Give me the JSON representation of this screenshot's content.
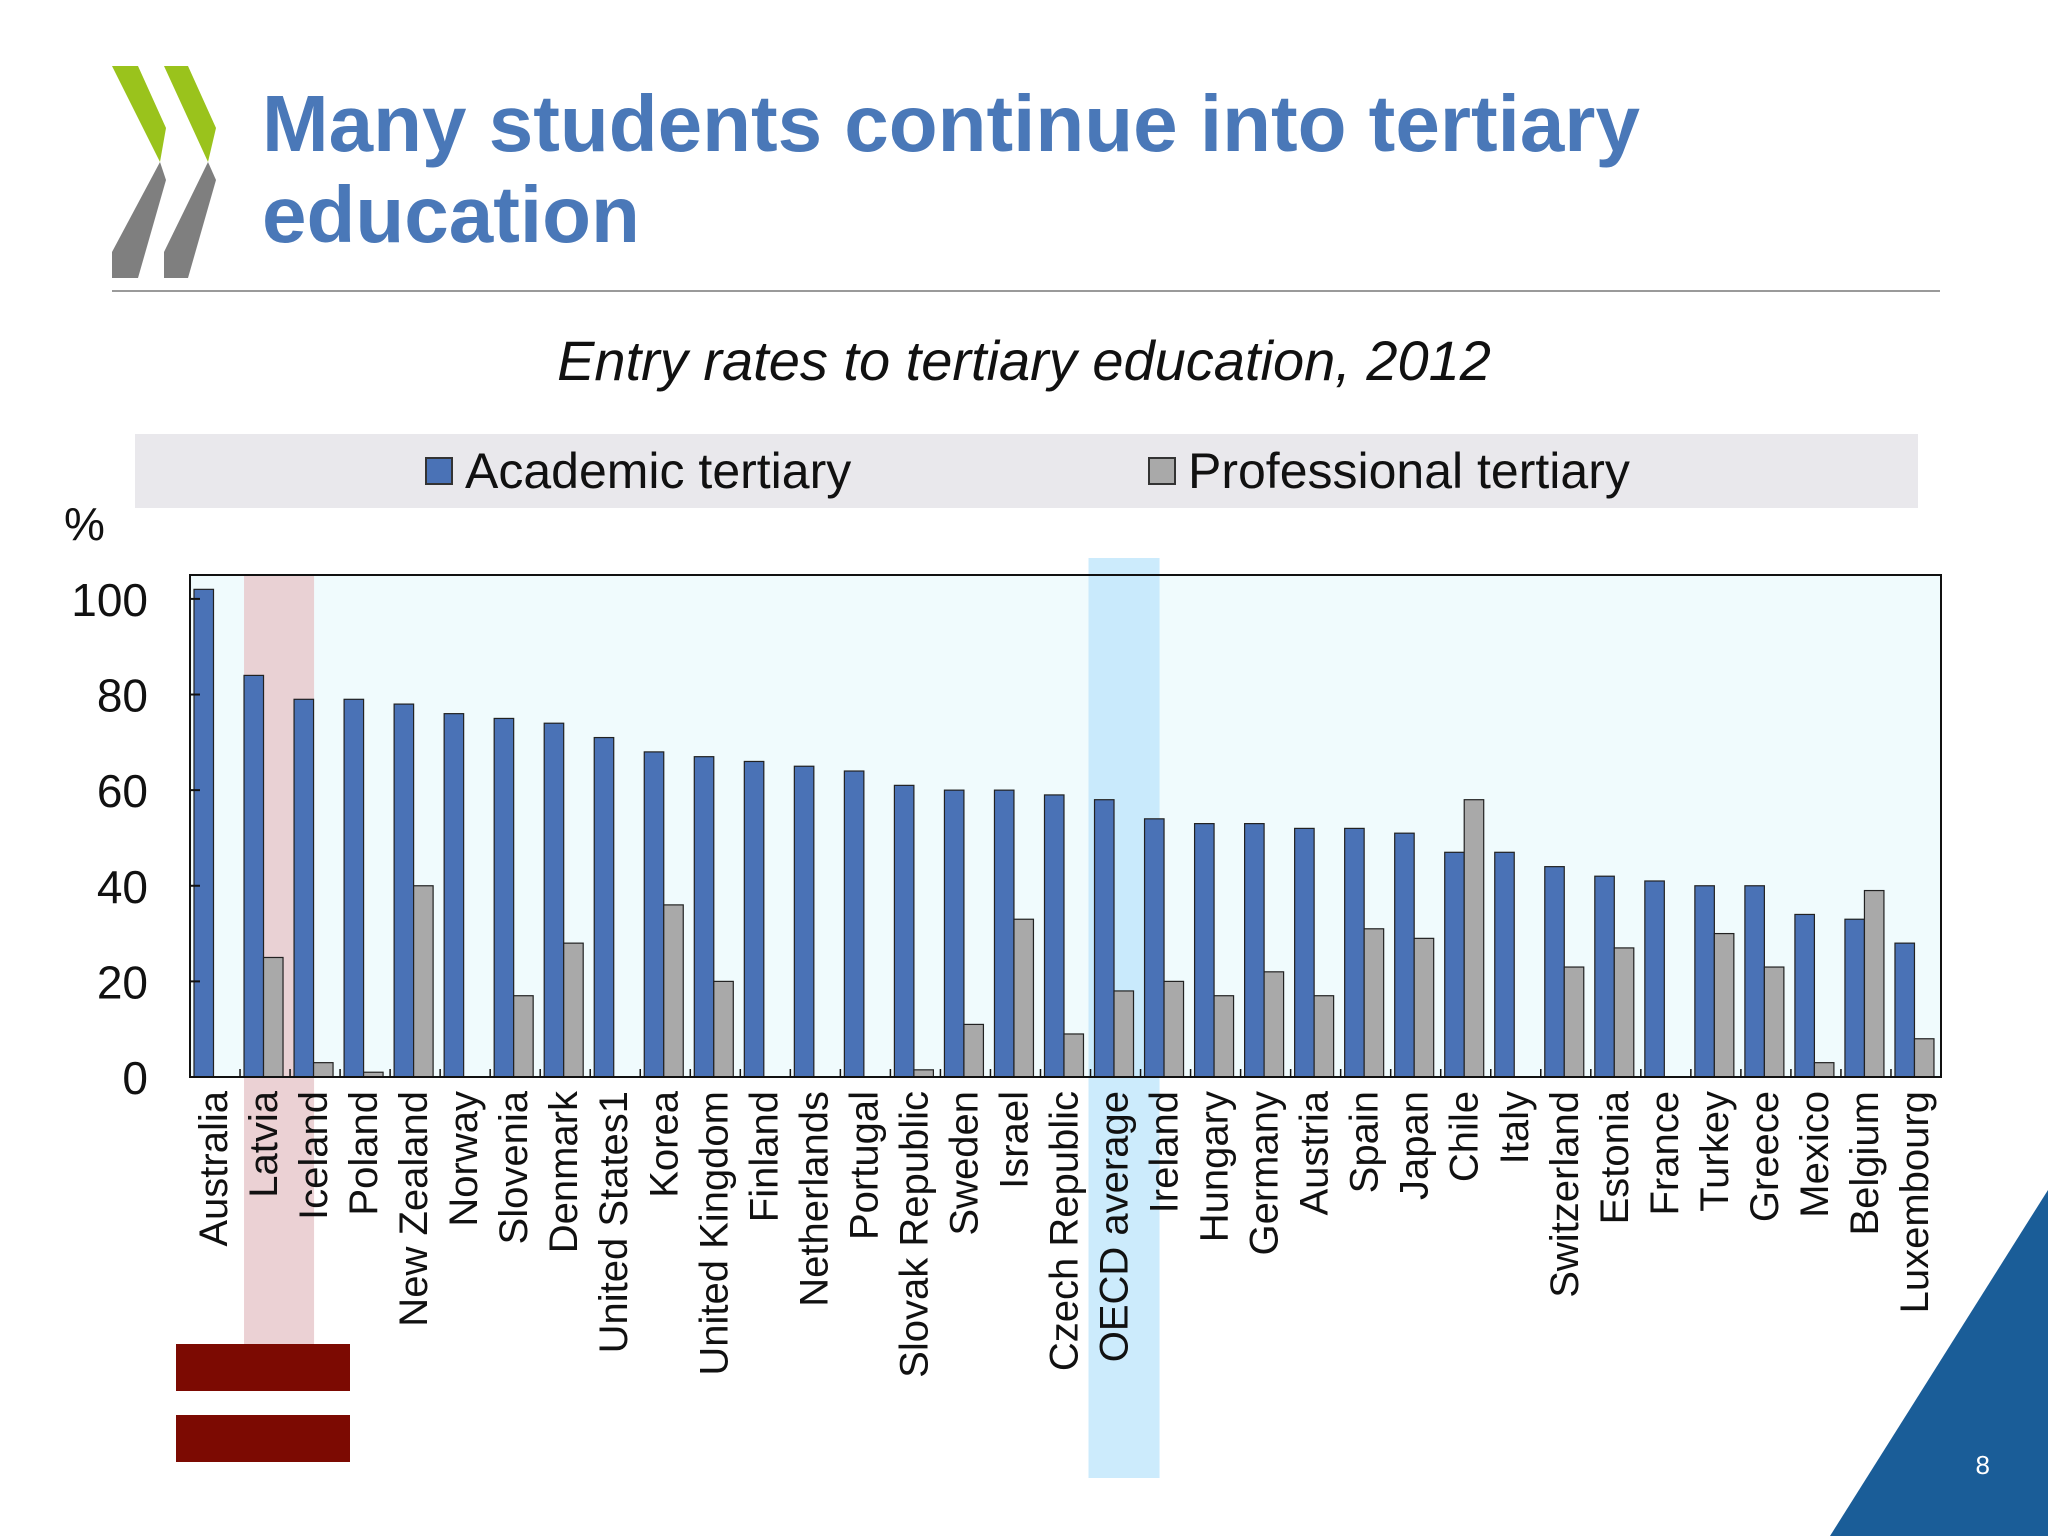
{
  "slide": {
    "title": "Many students continue into tertiary education",
    "page_number": "8"
  },
  "colors": {
    "title": "#4a78b8",
    "academic": "#4a72b6",
    "professional": "#a9a9a9",
    "plot_background": "#f0fbfd",
    "highlight_latvia": "#e7c9cc",
    "highlight_oecd": "#bfe6fb",
    "corner_triangle": "#1a5d98",
    "logo_green": "#9ac31c",
    "logo_grey": "#7f7f7f",
    "flag_red": "#7c0a02"
  },
  "chart_data": {
    "type": "bar",
    "title": "Entry rates to tertiary education, 2012",
    "ylabel": "%",
    "ylim": [
      0,
      100
    ],
    "yticks": [
      0,
      20,
      40,
      60,
      80,
      100
    ],
    "legend_position": "top",
    "grid": false,
    "categories": [
      "Australia",
      "Latvia",
      "Iceland",
      "Poland",
      "New Zealand",
      "Norway",
      "Slovenia",
      "Denmark",
      "United States1",
      "Korea",
      "United Kingdom",
      "Finland",
      "Netherlands",
      "Portugal",
      "Slovak Republic",
      "Sweden",
      "Israel",
      "Czech Republic",
      "OECD average",
      "Ireland",
      "Hungary",
      "Germany",
      "Austria",
      "Spain",
      "Japan",
      "Chile",
      "Italy",
      "Switzerland",
      "Estonia",
      "France",
      "Turkey",
      "Greece",
      "Mexico",
      "Belgium",
      "Luxembourg"
    ],
    "highlighted_categories": [
      "Latvia",
      "OECD average"
    ],
    "series": [
      {
        "name": "Academic tertiary",
        "values": [
          102,
          84,
          79,
          79,
          78,
          76,
          75,
          74,
          71,
          68,
          67,
          66,
          65,
          64,
          61,
          60,
          60,
          59,
          58,
          54,
          53,
          53,
          52,
          52,
          51,
          47,
          47,
          44,
          42,
          41,
          40,
          40,
          34,
          33,
          28
        ]
      },
      {
        "name": "Professional tertiary",
        "values": [
          0,
          25,
          3,
          1,
          40,
          0,
          17,
          28,
          0,
          36,
          20,
          0,
          0,
          0,
          1.5,
          11,
          33,
          9,
          18,
          20,
          17,
          22,
          17,
          31,
          29,
          58,
          0,
          23,
          27,
          0,
          30,
          23,
          3,
          39,
          8
        ]
      }
    ]
  }
}
